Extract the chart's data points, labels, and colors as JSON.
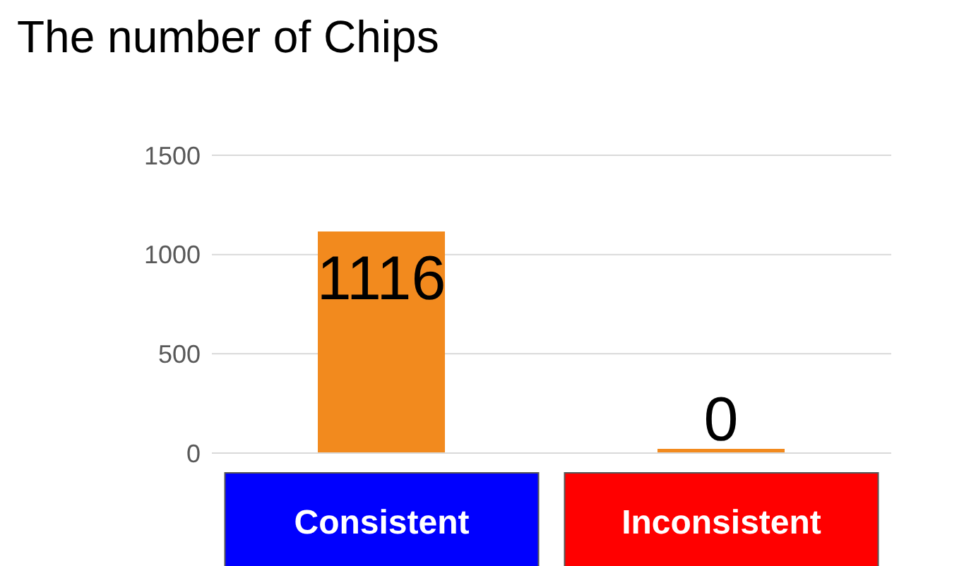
{
  "chart_data": {
    "type": "bar",
    "title": "The number of Chips",
    "categories": [
      "Consistent",
      "Inconsistent"
    ],
    "values": [
      1116,
      0
    ],
    "color": "#f28a1e",
    "ylim": [
      0,
      1500
    ],
    "yticks": [
      0,
      500,
      1000,
      1500
    ],
    "grid": "y",
    "data_labels": true
  }
}
